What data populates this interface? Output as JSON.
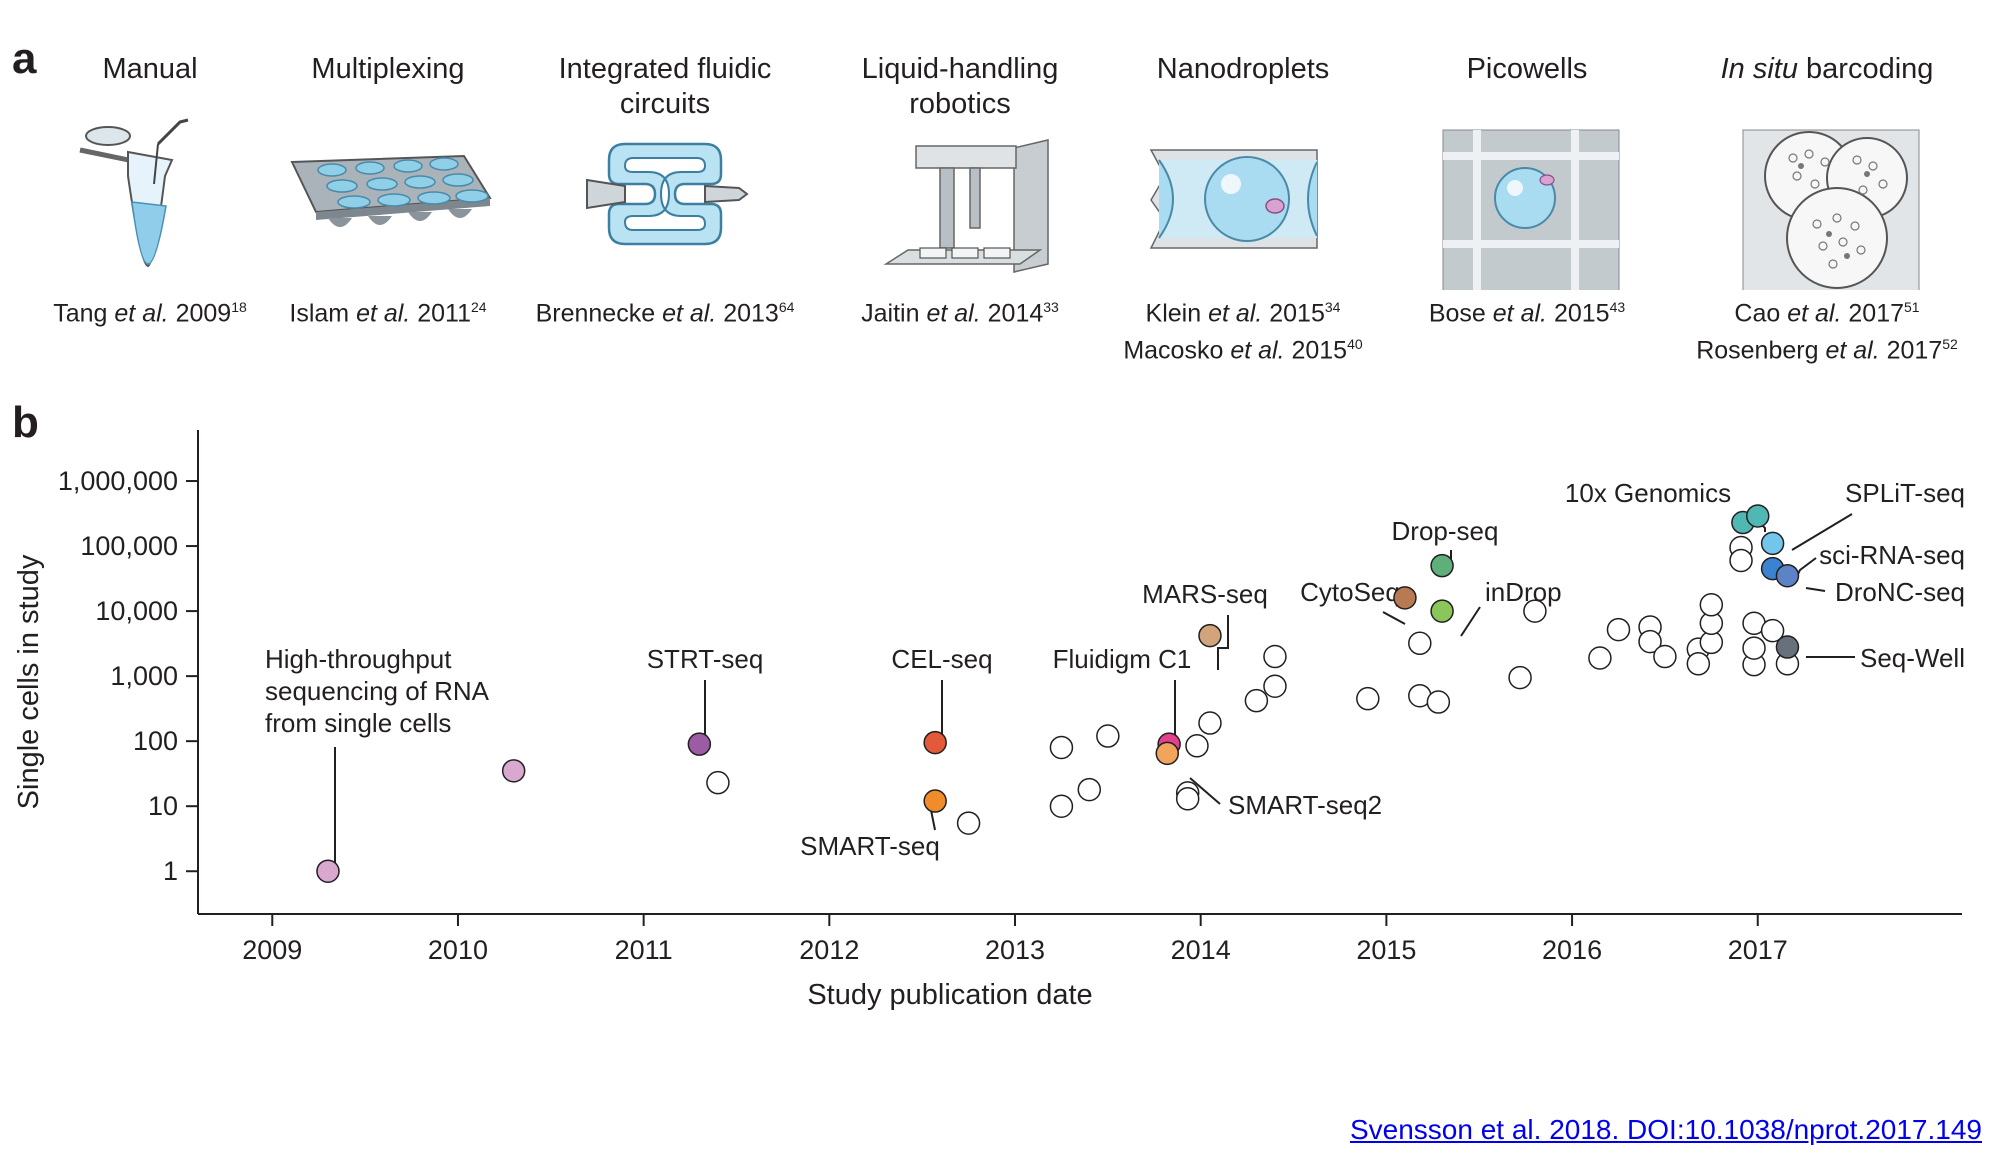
{
  "panel_a": {
    "letter": "a",
    "techniques": [
      {
        "title": "Manual",
        "title_italic": "",
        "citations": [
          {
            "author": "Tang",
            "etal": "et al.",
            "year": "2009",
            "ref": "18"
          }
        ]
      },
      {
        "title": "Multiplexing",
        "title_italic": "",
        "citations": [
          {
            "author": "Islam",
            "etal": "et al.",
            "year": "2011",
            "ref": "24"
          }
        ]
      },
      {
        "title": "Integrated fluidic circuits",
        "title_italic": "",
        "citations": [
          {
            "author": "Brennecke",
            "etal": "et al.",
            "year": "2013",
            "ref": "64"
          }
        ]
      },
      {
        "title": "Liquid-handling robotics",
        "title_italic": "",
        "citations": [
          {
            "author": "Jaitin",
            "etal": "et al.",
            "year": "2014",
            "ref": "33"
          }
        ]
      },
      {
        "title": "Nanodroplets",
        "title_italic": "",
        "citations": [
          {
            "author": "Klein",
            "etal": "et al.",
            "year": "2015",
            "ref": "34"
          },
          {
            "author": "Macosko",
            "etal": "et al.",
            "year": "2015",
            "ref": "40"
          }
        ]
      },
      {
        "title": "Picowells",
        "title_italic": "",
        "citations": [
          {
            "author": "Bose",
            "etal": "et al.",
            "year": "2015",
            "ref": "43"
          }
        ]
      },
      {
        "title": "barcoding",
        "title_italic": "In situ",
        "citations": [
          {
            "author": "Cao",
            "etal": "et al.",
            "year": "2017",
            "ref": "51"
          },
          {
            "author": "Rosenberg",
            "etal": "et al.",
            "year": "2017",
            "ref": "52"
          }
        ]
      }
    ]
  },
  "panel_b": {
    "letter": "b"
  },
  "chart_data": {
    "type": "scatter",
    "xlabel": "Study publication date",
    "ylabel": "Single cells in study",
    "xlim": [
      2008.6,
      2018.1
    ],
    "ylim": [
      0.22,
      3000000
    ],
    "y_scale": "log",
    "x_ticks": [
      "2009",
      "2010",
      "2011",
      "2012",
      "2013",
      "2014",
      "2015",
      "2016",
      "2017"
    ],
    "y_ticks": [
      {
        "value": 1,
        "label": "1"
      },
      {
        "value": 10,
        "label": "10"
      },
      {
        "value": 100,
        "label": "100"
      },
      {
        "value": 1000,
        "label": "1,000"
      },
      {
        "value": 10000,
        "label": "10,000"
      },
      {
        "value": 100000,
        "label": "100,000"
      },
      {
        "value": 1000000,
        "label": "1,000,000"
      }
    ],
    "grid": false,
    "named_points": [
      {
        "label": "High-throughput sequencing of RNA from single cells",
        "x": 2009.3,
        "y": 1,
        "color": "#d9a8cf"
      },
      {
        "label": "",
        "x": 2010.3,
        "y": 35,
        "color": "#d9a8cf"
      },
      {
        "label": "STRT-seq",
        "x": 2011.3,
        "y": 90,
        "color": "#9b5ca3"
      },
      {
        "label": "CEL-seq",
        "x": 2012.57,
        "y": 95,
        "color": "#e25a3a"
      },
      {
        "label": "SMART-seq",
        "x": 2012.57,
        "y": 12,
        "color": "#f08d2a"
      },
      {
        "label": "MARS-seq",
        "x": 2014.05,
        "y": 4200,
        "color": "#d1a47b"
      },
      {
        "label": "Fluidigm C1",
        "x": 2013.83,
        "y": 90,
        "color": "#e2418e"
      },
      {
        "label": "SMART-seq2",
        "x": 2013.82,
        "y": 65,
        "color": "#f0a45c"
      },
      {
        "label": "CytoSeq",
        "x": 2015.1,
        "y": 16000,
        "color": "#b87a52"
      },
      {
        "label": "Drop-seq",
        "x": 2015.3,
        "y": 50000,
        "color": "#5eaf7a"
      },
      {
        "label": "inDrop",
        "x": 2015.3,
        "y": 10000,
        "color": "#8bc65b"
      },
      {
        "label": "10x Genomics",
        "x": 2016.92,
        "y": 230000,
        "color": "#4fb8b2"
      },
      {
        "label": "",
        "x": 2017.0,
        "y": 290000,
        "color": "#4fb8b2"
      },
      {
        "label": "SPLiT-seq",
        "x": 2017.08,
        "y": 110000,
        "color": "#72c6ec"
      },
      {
        "label": "sci-RNA-seq",
        "x": 2017.08,
        "y": 45000,
        "color": "#3b82d0"
      },
      {
        "label": "DroNC-seq",
        "x": 2017.16,
        "y": 35000,
        "color": "#5c83c5"
      },
      {
        "label": "Seq-Well",
        "x": 2017.16,
        "y": 2800,
        "color": "#66717b"
      }
    ],
    "other_points": [
      {
        "x": 2011.4,
        "y": 23
      },
      {
        "x": 2012.75,
        "y": 5.5
      },
      {
        "x": 2013.25,
        "y": 80
      },
      {
        "x": 2013.25,
        "y": 10
      },
      {
        "x": 2013.4,
        "y": 18
      },
      {
        "x": 2013.5,
        "y": 120
      },
      {
        "x": 2013.93,
        "y": 16
      },
      {
        "x": 2013.93,
        "y": 13
      },
      {
        "x": 2013.98,
        "y": 85
      },
      {
        "x": 2014.05,
        "y": 190
      },
      {
        "x": 2014.3,
        "y": 420
      },
      {
        "x": 2014.4,
        "y": 700
      },
      {
        "x": 2014.4,
        "y": 2000
      },
      {
        "x": 2014.9,
        "y": 450
      },
      {
        "x": 2015.18,
        "y": 3200
      },
      {
        "x": 2015.18,
        "y": 500
      },
      {
        "x": 2015.28,
        "y": 400
      },
      {
        "x": 2015.8,
        "y": 10000
      },
      {
        "x": 2015.72,
        "y": 950
      },
      {
        "x": 2016.15,
        "y": 1900
      },
      {
        "x": 2016.25,
        "y": 5200
      },
      {
        "x": 2016.42,
        "y": 5700
      },
      {
        "x": 2016.42,
        "y": 3400
      },
      {
        "x": 2016.5,
        "y": 2000
      },
      {
        "x": 2016.68,
        "y": 2600
      },
      {
        "x": 2016.68,
        "y": 1550
      },
      {
        "x": 2016.75,
        "y": 3300
      },
      {
        "x": 2016.75,
        "y": 6500
      },
      {
        "x": 2016.75,
        "y": 12500
      },
      {
        "x": 2016.91,
        "y": 95000
      },
      {
        "x": 2016.91,
        "y": 60000
      },
      {
        "x": 2016.98,
        "y": 6500
      },
      {
        "x": 2016.98,
        "y": 1500
      },
      {
        "x": 2016.98,
        "y": 2700
      },
      {
        "x": 2017.08,
        "y": 5000
      },
      {
        "x": 2017.16,
        "y": 1550
      }
    ]
  },
  "source": {
    "text": "Svensson et al. 2018. DOI:10.1038/nprot.2017.149"
  }
}
